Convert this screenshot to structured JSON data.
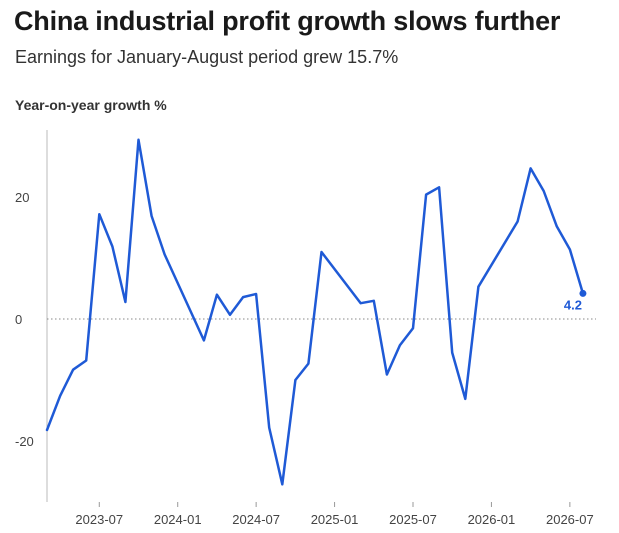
{
  "header": {
    "title": "China industrial profit growth slows further",
    "subtitle": "Earnings for January-August period grew 15.7%"
  },
  "chart_data": {
    "type": "line",
    "title": "China industrial profit growth slows further",
    "subtitle": "Earnings for January-August period grew 15.7%",
    "ylabel": "Year-on-year growth %",
    "xlabel": "",
    "x_tick_labels": [
      "2023-07",
      "2024-01",
      "2024-07",
      "2025-01",
      "2025-07",
      "2026-01",
      "2026-07"
    ],
    "y_tick_labels": [
      "20",
      "0",
      "-20"
    ],
    "y_ticks": [
      20,
      0,
      -20
    ],
    "ylim": [
      -30,
      31
    ],
    "xlim": [
      "2023-03",
      "2026-09"
    ],
    "zero_line": "dotted",
    "grid": false,
    "legend": "none",
    "series_color": "#1f5ad6",
    "series": [
      {
        "x": [
          "2023-03",
          "2023-04",
          "2023-05",
          "2023-06",
          "2023-07",
          "2023-08",
          "2023-09",
          "2023-10",
          "2023-11",
          "2023-12",
          "2024-03",
          "2024-04",
          "2024-05",
          "2024-06",
          "2024-07",
          "2024-08",
          "2024-09",
          "2024-10",
          "2024-11",
          "2024-12",
          "2025-03",
          "2025-04",
          "2025-05",
          "2025-06",
          "2025-07",
          "2025-08",
          "2025-09",
          "2025-10",
          "2025-11",
          "2025-12",
          "2026-03",
          "2026-04",
          "2026-05",
          "2026-06",
          "2026-07",
          "2026-08"
        ],
        "values": [
          -18.2,
          -12.6,
          -8.3,
          -6.8,
          17.2,
          11.9,
          2.8,
          29.4,
          16.9,
          10.6,
          -3.5,
          4.0,
          0.7,
          3.6,
          4.1,
          -17.8,
          -27.1,
          -10.0,
          -7.3,
          11.0,
          2.6,
          3.0,
          -9.1,
          -4.3,
          -1.5,
          20.4,
          21.6,
          -5.5,
          -13.1,
          5.3,
          16.0,
          24.7,
          21.0,
          15.2,
          11.4,
          4.2
        ]
      }
    ],
    "annotations": [
      {
        "text": "4.2",
        "x": "2026-08",
        "y": 4.2
      }
    ]
  }
}
